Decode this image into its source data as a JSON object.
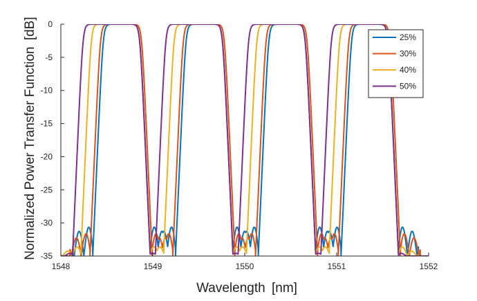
{
  "chart_data": {
    "type": "line",
    "title": "",
    "xlabel": "Wavelength",
    "xunit": "[nm]",
    "ylabel": "Normalized Power Transfer Function",
    "yunit": "[dB]",
    "xlim": [
      1548,
      1552
    ],
    "ylim": [
      -35,
      0
    ],
    "xticks": [
      "1548",
      "1549",
      "1550",
      "1551",
      "1552"
    ],
    "yticks": [
      "0",
      "-5",
      "-10",
      "-15",
      "-20",
      "-25",
      "-30",
      "-35"
    ],
    "grid": false,
    "legend_position": "top-right",
    "channel_center_nm": [
      1548.5,
      1549.4,
      1550.3,
      1551.2
    ],
    "floor_db": -35,
    "series": [
      {
        "name": "25%",
        "color": "#0072BD",
        "edge_left_nm": [
          1548.46,
          1549.36,
          1550.26,
          1551.16
        ],
        "edge_right_nm": [
          1548.86,
          1549.76,
          1550.66,
          1551.56
        ],
        "sidelobe_peak_db": -30
      },
      {
        "name": "30%",
        "color": "#D95319",
        "edge_left_nm": [
          1548.43,
          1549.33,
          1550.23,
          1551.13
        ],
        "edge_right_nm": [
          1548.88,
          1549.78,
          1550.68,
          1551.58
        ],
        "sidelobe_peak_db": -31
      },
      {
        "name": "40%",
        "color": "#EDB120",
        "edge_left_nm": [
          1548.33,
          1549.23,
          1550.13,
          1551.03
        ],
        "edge_right_nm": [
          1548.86,
          1549.76,
          1550.66,
          1551.56
        ],
        "sidelobe_peak_db": -33
      },
      {
        "name": "50%",
        "color": "#7E2F8E",
        "edge_left_nm": [
          1548.24,
          1549.14,
          1550.04,
          1550.94
        ],
        "edge_right_nm": [
          1548.86,
          1549.76,
          1550.66,
          1551.56
        ],
        "sidelobe_peak_db": -34
      }
    ]
  }
}
